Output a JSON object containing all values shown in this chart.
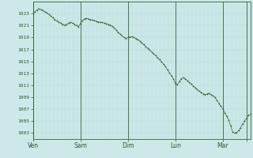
{
  "background_color": "#cce8e8",
  "plot_bg_color": "#cce8e8",
  "line_color": "#2d6a2d",
  "marker_color": "#2d6a2d",
  "grid_color_minor": "#b8d8d8",
  "grid_color_major": "#a0c8c8",
  "sep_line_color": "#336633",
  "tick_label_color": "#2d5a2d",
  "ylim": [
    1002,
    1025
  ],
  "yticks": [
    1003,
    1005,
    1007,
    1009,
    1011,
    1013,
    1015,
    1017,
    1019,
    1021,
    1023
  ],
  "x_day_labels": [
    "Ven",
    "Sam",
    "Dim",
    "Lun",
    "Mar",
    ""
  ],
  "x_day_positions": [
    0,
    24,
    48,
    72,
    96,
    108
  ],
  "xlim": [
    0,
    110
  ],
  "pressure_data": [
    1023.0,
    1023.3,
    1023.6,
    1023.8,
    1023.7,
    1023.5,
    1023.3,
    1023.1,
    1022.9,
    1022.6,
    1022.3,
    1022.0,
    1021.8,
    1021.6,
    1021.4,
    1021.2,
    1021.1,
    1021.2,
    1021.4,
    1021.5,
    1021.4,
    1021.2,
    1021.0,
    1020.8,
    1021.3,
    1021.8,
    1022.1,
    1022.2,
    1022.1,
    1022.0,
    1021.9,
    1021.8,
    1021.7,
    1021.6,
    1021.55,
    1021.5,
    1021.4,
    1021.3,
    1021.2,
    1021.1,
    1020.9,
    1020.6,
    1020.3,
    1019.9,
    1019.6,
    1019.3,
    1019.0,
    1018.85,
    1019.0,
    1019.1,
    1019.15,
    1019.0,
    1018.85,
    1018.65,
    1018.4,
    1018.1,
    1017.8,
    1017.5,
    1017.2,
    1016.9,
    1016.6,
    1016.3,
    1016.0,
    1015.6,
    1015.3,
    1014.9,
    1014.5,
    1014.1,
    1013.6,
    1013.1,
    1012.6,
    1012.1,
    1011.3,
    1011.1,
    1011.6,
    1012.1,
    1012.3,
    1012.1,
    1011.8,
    1011.5,
    1011.2,
    1010.9,
    1010.6,
    1010.3,
    1010.0,
    1009.8,
    1009.6,
    1009.4,
    1009.55,
    1009.65,
    1009.45,
    1009.25,
    1009.0,
    1008.5,
    1008.0,
    1007.5,
    1007.0,
    1006.4,
    1005.8,
    1005.2,
    1004.2,
    1003.2,
    1003.0,
    1003.1,
    1003.4,
    1003.9,
    1004.5,
    1005.0,
    1005.5,
    1006.0,
    1006.2,
    1006.1
  ]
}
